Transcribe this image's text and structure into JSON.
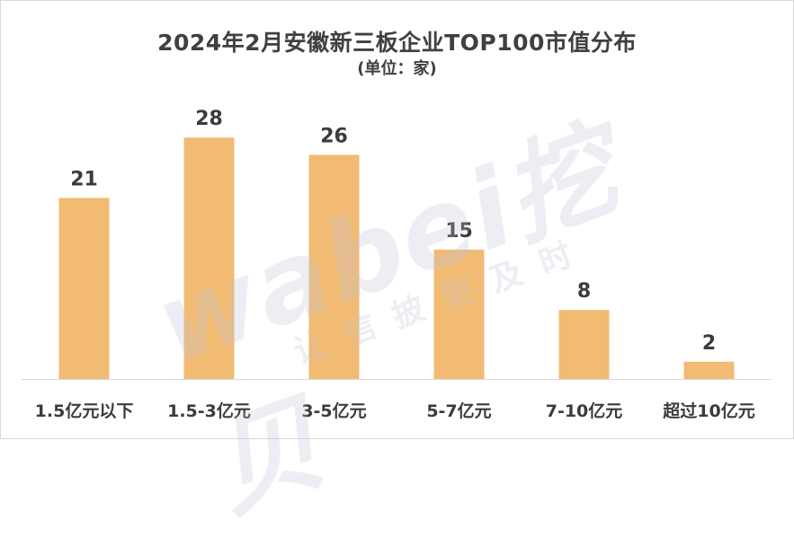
{
  "chart_data": {
    "type": "bar",
    "title": "2024年2月安徽新三板企业TOP100市值分布",
    "subtitle": "(单位：家)",
    "categories": [
      "1.5亿元以下",
      "1.5-3亿元",
      "3-5亿元",
      "5-7亿元",
      "7-10亿元",
      "超过10亿元"
    ],
    "values": [
      21,
      28,
      26,
      15,
      8,
      2
    ],
    "ylim": [
      0,
      30
    ],
    "grid": false,
    "legend": "none",
    "bar_color": "#F2BB73"
  },
  "watermark": {
    "main": "wabei挖贝",
    "sub": "让信披更及时"
  }
}
